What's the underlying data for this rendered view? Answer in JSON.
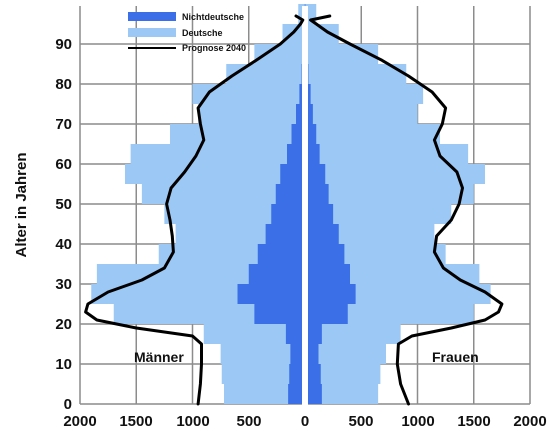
{
  "chart_data": {
    "type": "population-pyramid",
    "ylabel": "Alter in Jahren",
    "y_ticks": [
      "0",
      "10",
      "20",
      "30",
      "40",
      "50",
      "60",
      "70",
      "80",
      "90"
    ],
    "x_ticks_left": [
      "2000",
      "1500",
      "1000",
      "500",
      "0"
    ],
    "x_ticks_right": [
      "500",
      "1000",
      "1500",
      "2000"
    ],
    "xlim": [
      0,
      2000
    ],
    "ylim": [
      0,
      98
    ],
    "grid": true,
    "legend_position": "top-left",
    "colors": {
      "nichtdeutsche": "#3a6fe8",
      "deutsche": "#9cc8f5",
      "prognose": "#000000",
      "grid": "#8c8c8c"
    },
    "legend": {
      "nichtdeutsche": "Nichtdeutsche",
      "deutsche": "Deutsche",
      "prognose": "Prognose 2040"
    },
    "panels": {
      "left": "Männer",
      "right": "Frauen"
    },
    "age_groups": [
      0,
      5,
      10,
      15,
      20,
      25,
      30,
      35,
      40,
      45,
      50,
      55,
      60,
      65,
      70,
      75,
      80,
      85,
      90,
      95
    ],
    "series": [
      {
        "name": "Nichtdeutsche",
        "side": "male",
        "values": [
          150,
          140,
          130,
          170,
          450,
          600,
          500,
          420,
          350,
          300,
          260,
          220,
          160,
          120,
          80,
          50,
          30,
          15,
          5,
          2
        ]
      },
      {
        "name": "Nichtdeutsche",
        "side": "female",
        "values": [
          150,
          140,
          120,
          150,
          380,
          450,
          400,
          350,
          300,
          250,
          210,
          180,
          130,
          100,
          70,
          50,
          30,
          15,
          8,
          3
        ]
      },
      {
        "name": "Deutsche",
        "side": "male",
        "values": [
          720,
          740,
          750,
          900,
          1700,
          1900,
          1850,
          1300,
          1150,
          1250,
          1450,
          1600,
          1550,
          1200,
          950,
          1000,
          700,
          450,
          200,
          60
        ]
      },
      {
        "name": "Deutsche",
        "side": "female",
        "values": [
          650,
          670,
          720,
          850,
          1500,
          1650,
          1550,
          1250,
          1150,
          1300,
          1500,
          1600,
          1450,
          1200,
          1000,
          1050,
          900,
          650,
          300,
          100
        ]
      },
      {
        "name": "Prognose 2040",
        "side": "male",
        "ages": [
          0,
          5,
          10,
          15,
          17,
          19,
          21,
          23,
          25,
          28,
          31,
          34,
          38,
          42,
          46,
          50,
          54,
          58,
          62,
          66,
          70,
          74,
          78,
          82,
          86,
          90,
          93,
          95,
          96,
          97
        ],
        "values": [
          950,
          930,
          920,
          920,
          1000,
          1500,
          1850,
          1950,
          1930,
          1750,
          1450,
          1250,
          1170,
          1180,
          1200,
          1230,
          1190,
          1070,
          970,
          900,
          930,
          950,
          850,
          650,
          430,
          220,
          100,
          40,
          20,
          80
        ]
      },
      {
        "name": "Prognose 2040",
        "side": "female",
        "ages": [
          0,
          5,
          10,
          15,
          17,
          19,
          21,
          23,
          25,
          28,
          31,
          34,
          38,
          42,
          46,
          50,
          54,
          58,
          62,
          66,
          70,
          74,
          78,
          82,
          86,
          90,
          93,
          95,
          96,
          97
        ],
        "values": [
          920,
          850,
          820,
          830,
          950,
          1300,
          1600,
          1720,
          1750,
          1600,
          1380,
          1230,
          1150,
          1170,
          1300,
          1370,
          1400,
          1350,
          1200,
          1150,
          1220,
          1250,
          1130,
          920,
          680,
          400,
          200,
          100,
          50,
          220
        ]
      }
    ]
  }
}
